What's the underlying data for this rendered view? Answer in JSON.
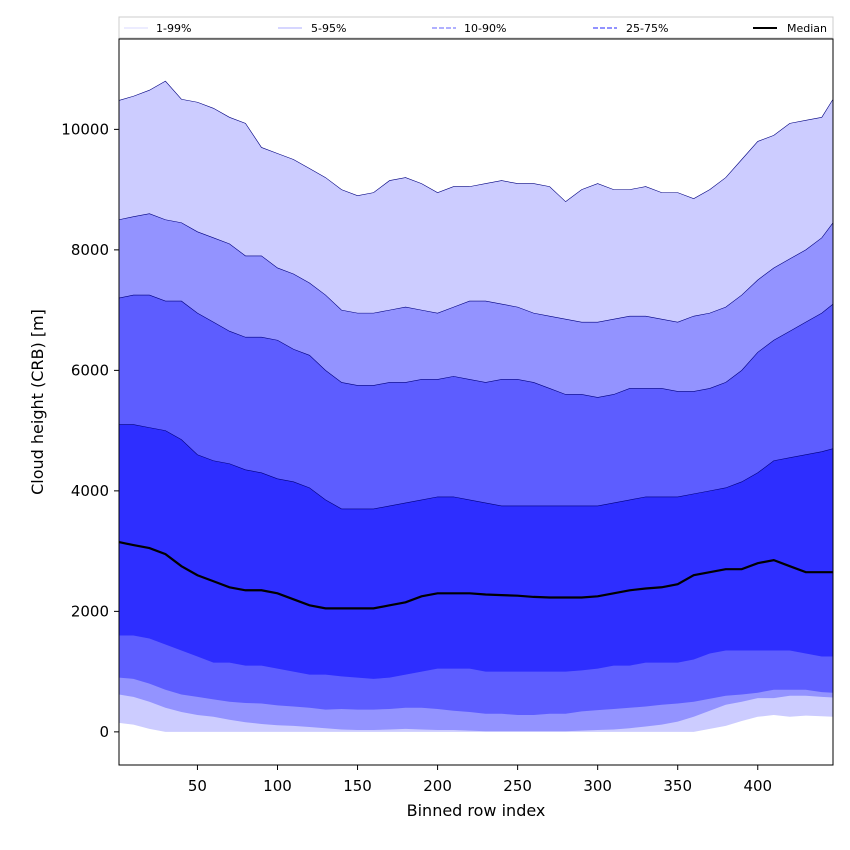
{
  "chart_data": {
    "type": "area",
    "xlabel": "Binned row index",
    "ylabel": "Cloud height (CRB) [m]",
    "xlim": [
      1,
      447
    ],
    "ylim": [
      -550,
      11500
    ],
    "xticks": [
      50,
      100,
      150,
      200,
      250,
      300,
      350,
      400
    ],
    "yticks": [
      0,
      2000,
      4000,
      6000,
      8000,
      10000
    ],
    "legend_position": "top (horizontal strip above plot)",
    "x": [
      1,
      10,
      20,
      30,
      40,
      50,
      60,
      70,
      80,
      90,
      100,
      110,
      120,
      130,
      140,
      150,
      160,
      170,
      180,
      190,
      200,
      210,
      220,
      230,
      240,
      250,
      260,
      270,
      280,
      290,
      300,
      310,
      320,
      330,
      340,
      350,
      360,
      370,
      380,
      390,
      400,
      410,
      420,
      430,
      440,
      447
    ],
    "bands": [
      {
        "name": "1-99%",
        "color": "#ccccff",
        "upper": [
          10480,
          10550,
          10650,
          10800,
          10500,
          10450,
          10350,
          10200,
          10100,
          9700,
          9600,
          9500,
          9350,
          9200,
          9000,
          8900,
          8950,
          9150,
          9200,
          9100,
          8950,
          9050,
          9050,
          9100,
          9150,
          9100,
          9100,
          9050,
          8800,
          9000,
          9100,
          9000,
          9000,
          9050,
          8950,
          8950,
          8850,
          9000,
          9200,
          9500,
          9800,
          9900,
          10100,
          10150,
          10200,
          10500
        ],
        "lower": [
          150,
          120,
          50,
          0,
          0,
          0,
          0,
          0,
          0,
          0,
          0,
          0,
          0,
          0,
          0,
          0,
          0,
          0,
          0,
          0,
          0,
          0,
          0,
          0,
          0,
          0,
          0,
          0,
          0,
          0,
          0,
          0,
          0,
          0,
          0,
          0,
          0,
          50,
          100,
          180,
          250,
          280,
          250,
          270,
          260,
          250
        ]
      },
      {
        "name": "5-95%",
        "color": "#9393ff",
        "upper": [
          8500,
          8550,
          8600,
          8500,
          8450,
          8300,
          8200,
          8100,
          7900,
          7900,
          7700,
          7600,
          7450,
          7250,
          7000,
          6950,
          6950,
          7000,
          7050,
          7000,
          6950,
          7050,
          7150,
          7150,
          7100,
          7050,
          6950,
          6900,
          6850,
          6800,
          6800,
          6850,
          6900,
          6900,
          6850,
          6800,
          6900,
          6950,
          7050,
          7250,
          7500,
          7700,
          7850,
          8000,
          8200,
          8450
        ],
        "lower": [
          620,
          580,
          500,
          400,
          330,
          280,
          250,
          200,
          160,
          130,
          110,
          100,
          80,
          60,
          40,
          30,
          30,
          40,
          50,
          40,
          30,
          30,
          20,
          10,
          10,
          10,
          10,
          10,
          10,
          20,
          30,
          40,
          60,
          90,
          120,
          170,
          250,
          350,
          450,
          500,
          560,
          560,
          600,
          600,
          580,
          570
        ]
      },
      {
        "name": "10-90%",
        "color": "#5d5dff",
        "upper": [
          7200,
          7250,
          7250,
          7150,
          7150,
          6950,
          6800,
          6650,
          6550,
          6550,
          6500,
          6350,
          6250,
          6000,
          5800,
          5750,
          5750,
          5800,
          5800,
          5850,
          5850,
          5900,
          5850,
          5800,
          5850,
          5850,
          5800,
          5700,
          5600,
          5600,
          5550,
          5600,
          5700,
          5700,
          5700,
          5650,
          5650,
          5700,
          5800,
          6000,
          6300,
          6500,
          6650,
          6800,
          6950,
          7100
        ],
        "lower": [
          900,
          880,
          800,
          700,
          620,
          580,
          540,
          500,
          480,
          470,
          440,
          420,
          400,
          370,
          380,
          370,
          370,
          380,
          400,
          400,
          380,
          350,
          330,
          300,
          300,
          280,
          280,
          300,
          300,
          340,
          360,
          380,
          400,
          420,
          450,
          470,
          500,
          550,
          600,
          620,
          650,
          700,
          700,
          700,
          660,
          650
        ]
      },
      {
        "name": "25-75%",
        "color": "#2e2eff",
        "upper": [
          5100,
          5100,
          5050,
          5000,
          4850,
          4600,
          4500,
          4450,
          4350,
          4300,
          4200,
          4150,
          4050,
          3850,
          3700,
          3700,
          3700,
          3750,
          3800,
          3850,
          3900,
          3900,
          3850,
          3800,
          3750,
          3750,
          3750,
          3750,
          3750,
          3750,
          3750,
          3800,
          3850,
          3900,
          3900,
          3900,
          3950,
          4000,
          4050,
          4150,
          4300,
          4500,
          4550,
          4600,
          4650,
          4700
        ],
        "lower": [
          1600,
          1600,
          1550,
          1450,
          1350,
          1250,
          1150,
          1150,
          1100,
          1100,
          1050,
          1000,
          950,
          950,
          920,
          900,
          880,
          900,
          950,
          1000,
          1050,
          1050,
          1050,
          1000,
          1000,
          1000,
          1000,
          1000,
          1000,
          1020,
          1050,
          1100,
          1100,
          1150,
          1150,
          1150,
          1200,
          1300,
          1350,
          1350,
          1350,
          1350,
          1350,
          1300,
          1250,
          1250
        ]
      }
    ],
    "median": {
      "name": "Median",
      "color": "#000000",
      "values": [
        3150,
        3100,
        3050,
        2950,
        2750,
        2600,
        2500,
        2400,
        2350,
        2350,
        2300,
        2200,
        2100,
        2050,
        2050,
        2050,
        2050,
        2100,
        2150,
        2250,
        2300,
        2300,
        2300,
        2280,
        2270,
        2260,
        2240,
        2230,
        2230,
        2230,
        2250,
        2300,
        2350,
        2380,
        2400,
        2450,
        2600,
        2650,
        2700,
        2700,
        2800,
        2850,
        2750,
        2650,
        2650,
        2650
      ]
    },
    "legend": [
      {
        "label": "1-99%",
        "color": "#ccccff",
        "style": "solid-thin"
      },
      {
        "label": "5-95%",
        "color": "#9393ff",
        "style": "solid-thin"
      },
      {
        "label": "10-90%",
        "color": "#8080ff",
        "style": "dashed"
      },
      {
        "label": "25-75%",
        "color": "#5050ff",
        "style": "dashed"
      },
      {
        "label": "Median",
        "color": "#000000",
        "style": "solid-thick"
      }
    ]
  }
}
